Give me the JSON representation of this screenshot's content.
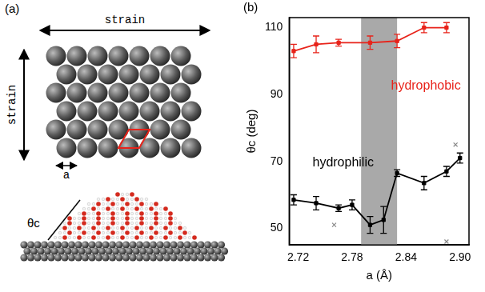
{
  "panel_a": {
    "label": "(a)",
    "strain_labels": [
      "strain",
      "strain"
    ],
    "lattice_label": "a",
    "angle_label": "θc"
  },
  "chart_data": {
    "type": "line",
    "panel_label": "(b)",
    "x_label": "a (Å)",
    "y_label": "θc (deg)",
    "xlim": [
      2.71,
      2.91
    ],
    "xticks": [
      2.72,
      2.78,
      2.84,
      {
        "value": 2.9,
        "label": "2.90"
      }
    ],
    "ylim": [
      45,
      113
    ],
    "yticks": [
      50,
      70,
      90,
      110
    ],
    "grid": false,
    "shaded_region": [
      2.79,
      2.83
    ],
    "series": [
      {
        "name": "hydrophobic",
        "color": "#e8231a",
        "marker": "square",
        "line_style": "solid",
        "x": [
          2.715,
          2.74,
          2.765,
          2.8,
          2.83,
          2.86,
          2.885
        ],
        "values": [
          103,
          105,
          105.5,
          105.5,
          106,
          110,
          110
        ],
        "errors": [
          2,
          2.5,
          1,
          2,
          2,
          1.5,
          1.5
        ]
      },
      {
        "name": "hydrophilic",
        "color": "#000000",
        "marker": "square",
        "line_style": "solid",
        "x": [
          2.715,
          2.74,
          2.765,
          2.78,
          2.8,
          2.815,
          2.83,
          2.86,
          2.885,
          2.9
        ],
        "values": [
          58.5,
          57.5,
          56,
          57,
          51,
          52.5,
          66.5,
          63.5,
          67,
          71
        ],
        "errors": [
          1.5,
          2,
          1,
          1.5,
          2.5,
          4,
          1,
          2,
          1.5,
          1.5
        ]
      },
      {
        "color": "#888888",
        "marker": "cross",
        "line_style": "none",
        "x": [
          2.76,
          2.885,
          2.895
        ],
        "values": [
          51,
          46,
          75
        ]
      }
    ]
  }
}
